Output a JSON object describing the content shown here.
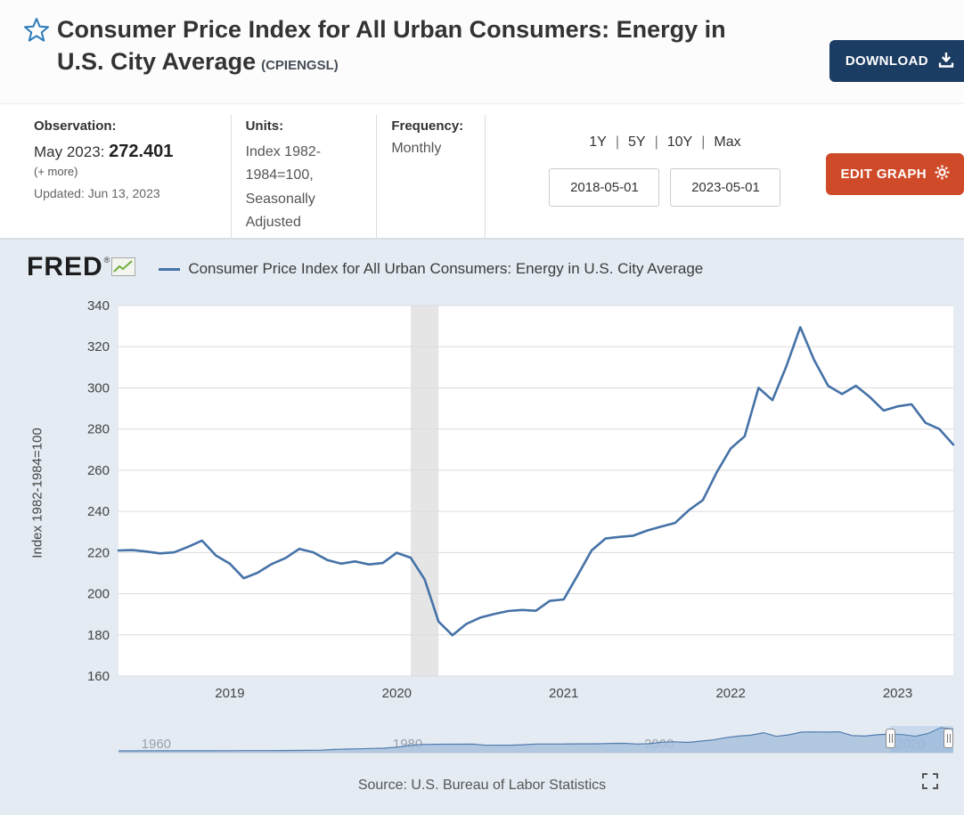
{
  "header": {
    "title": "Consumer Price Index for All Urban Consumers: Energy in U.S. City Average",
    "series_id": "(CPIENGSL)",
    "download_label": "DOWNLOAD"
  },
  "info": {
    "observation_label": "Observation:",
    "observation_period": "May 2023:",
    "observation_value": "272.401",
    "more_label": "(+ more)",
    "updated": "Updated: Jun 13, 2023",
    "units_label": "Units:",
    "units_value": "Index 1982-1984=100, Seasonally Adjusted",
    "frequency_label": "Frequency:",
    "frequency_value": "Monthly",
    "ranges": [
      "1Y",
      "5Y",
      "10Y",
      "Max"
    ],
    "range_separator": "|",
    "date_start": "2018-05-01",
    "date_end": "2023-05-01",
    "edit_graph_label": "EDIT GRAPH"
  },
  "graph": {
    "brand": "FRED",
    "brand_mark": "®",
    "legend": "Consumer Price Index for All Urban Consumers: Energy in U.S. City Average",
    "y_axis_title": "Index 1982-1984=100",
    "source": "Source: U.S. Bureau of Labor Statistics"
  },
  "theme": {
    "accent_navy": "#1b3c63",
    "accent_red": "#cf4a28",
    "panel_bg": "#e4ebf3"
  },
  "chart_data": {
    "type": "line",
    "title": "Consumer Price Index for All Urban Consumers: Energy in U.S. City Average",
    "ylabel": "Index 1982-1984=100",
    "ylim": [
      160,
      340
    ],
    "yticks": [
      160,
      180,
      200,
      220,
      240,
      260,
      280,
      300,
      320,
      340
    ],
    "xticks": [
      "2019",
      "2020",
      "2021",
      "2022",
      "2023"
    ],
    "grid": true,
    "line_color": "#4572a7",
    "recession_color": "#e5e5e5",
    "recession_band": {
      "start": "2020-02",
      "end": "2020-04"
    },
    "x": [
      "2018-05",
      "2018-06",
      "2018-07",
      "2018-08",
      "2018-09",
      "2018-10",
      "2018-11",
      "2018-12",
      "2019-01",
      "2019-02",
      "2019-03",
      "2019-04",
      "2019-05",
      "2019-06",
      "2019-07",
      "2019-08",
      "2019-09",
      "2019-10",
      "2019-11",
      "2019-12",
      "2020-01",
      "2020-02",
      "2020-03",
      "2020-04",
      "2020-05",
      "2020-06",
      "2020-07",
      "2020-08",
      "2020-09",
      "2020-10",
      "2020-11",
      "2020-12",
      "2021-01",
      "2021-02",
      "2021-03",
      "2021-04",
      "2021-05",
      "2021-06",
      "2021-07",
      "2021-08",
      "2021-09",
      "2021-10",
      "2021-11",
      "2021-12",
      "2022-01",
      "2022-02",
      "2022-03",
      "2022-04",
      "2022-05",
      "2022-06",
      "2022-07",
      "2022-08",
      "2022-09",
      "2022-10",
      "2022-11",
      "2022-12",
      "2023-01",
      "2023-02",
      "2023-03",
      "2023-04",
      "2023-05"
    ],
    "values": [
      221.0,
      221.2,
      220.5,
      219.6,
      220.1,
      222.8,
      225.8,
      218.6,
      214.6,
      207.5,
      210.2,
      214.4,
      217.3,
      221.8,
      220.1,
      216.4,
      214.6,
      215.7,
      214.2,
      214.9,
      219.9,
      217.5,
      207.0,
      186.5,
      179.8,
      185.3,
      188.4,
      190.1,
      191.6,
      192.1,
      191.7,
      196.5,
      197.2,
      209.0,
      221.0,
      226.8,
      227.6,
      228.2,
      230.7,
      232.6,
      234.4,
      240.6,
      245.5,
      259.0,
      270.5,
      276.5,
      300.0,
      294.0,
      310.5,
      329.5,
      313.5,
      301.0,
      297.0,
      301.0,
      295.5,
      289.0,
      291.0,
      292.0,
      283.0,
      280.0,
      272.401
    ],
    "minimap": {
      "labels": [
        1960,
        1980,
        2000,
        2020
      ],
      "domain_start": 1957,
      "domain_end": 2023.4,
      "window_start": 2018.37,
      "window_end": 2023.37,
      "values": [
        21.5,
        21.5,
        21.9,
        22.4,
        22.5,
        22.6,
        22.6,
        22.5,
        22.9,
        23.3,
        23.8,
        24.2,
        24.8,
        25.5,
        26.5,
        27.2,
        29.4,
        38.1,
        42.1,
        45.1,
        49.4,
        52.5,
        65.7,
        86.0,
        97.7,
        99.2,
        99.9,
        100.9,
        101.6,
        88.2,
        88.6,
        89.3,
        94.3,
        102.1,
        102.5,
        103.0,
        104.2,
        104.6,
        105.2,
        110.1,
        111.5,
        102.9,
        106.6,
        124.6,
        129.3,
        121.7,
        136.5,
        151.4,
        177.1,
        196.9,
        207.7,
        236.7,
        193.1,
        211.4,
        243.9,
        246.1,
        244.5,
        247.0,
        202.9,
        197.0,
        212.4,
        220.9,
        214.8,
        194.5,
        227.0,
        296.0,
        280.0
      ]
    }
  }
}
